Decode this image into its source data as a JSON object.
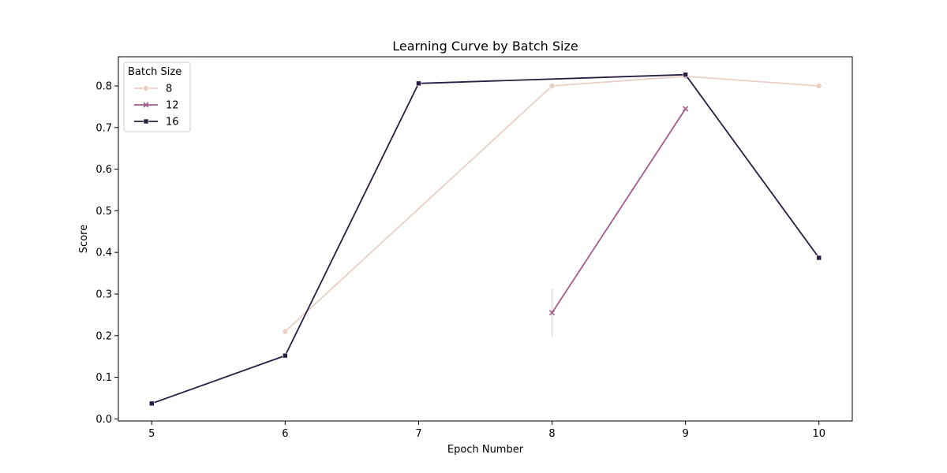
{
  "chart_data": {
    "type": "line",
    "title": "Learning Curve by Batch Size",
    "xlabel": "Epoch Number",
    "ylabel": "Score",
    "xlim": [
      4.75,
      10.25
    ],
    "ylim": [
      -0.005,
      0.87
    ],
    "xticks": [
      "5",
      "6",
      "7",
      "8",
      "9",
      "10"
    ],
    "yticks": [
      "0.0",
      "0.1",
      "0.2",
      "0.3",
      "0.4",
      "0.5",
      "0.6",
      "0.7",
      "0.8"
    ],
    "legend": {
      "title": "Batch Size",
      "placement": "top-left"
    },
    "series": [
      {
        "name": "8",
        "color": "#ebcfc7",
        "marker": "circle",
        "x": [
          6,
          8,
          9,
          10
        ],
        "y": [
          0.21,
          0.8,
          0.823,
          0.8
        ]
      },
      {
        "name": "12",
        "color": "#a25c8c",
        "marker": "x",
        "x": [
          8,
          9
        ],
        "y": [
          0.255,
          0.745
        ],
        "error_bar": {
          "x": 8,
          "low": 0.198,
          "high": 0.313
        }
      },
      {
        "name": "16",
        "color": "#2b1e43",
        "marker": "square",
        "x": [
          5,
          6,
          7,
          9,
          10
        ],
        "y": [
          0.037,
          0.152,
          0.806,
          0.827,
          0.387
        ]
      }
    ]
  }
}
